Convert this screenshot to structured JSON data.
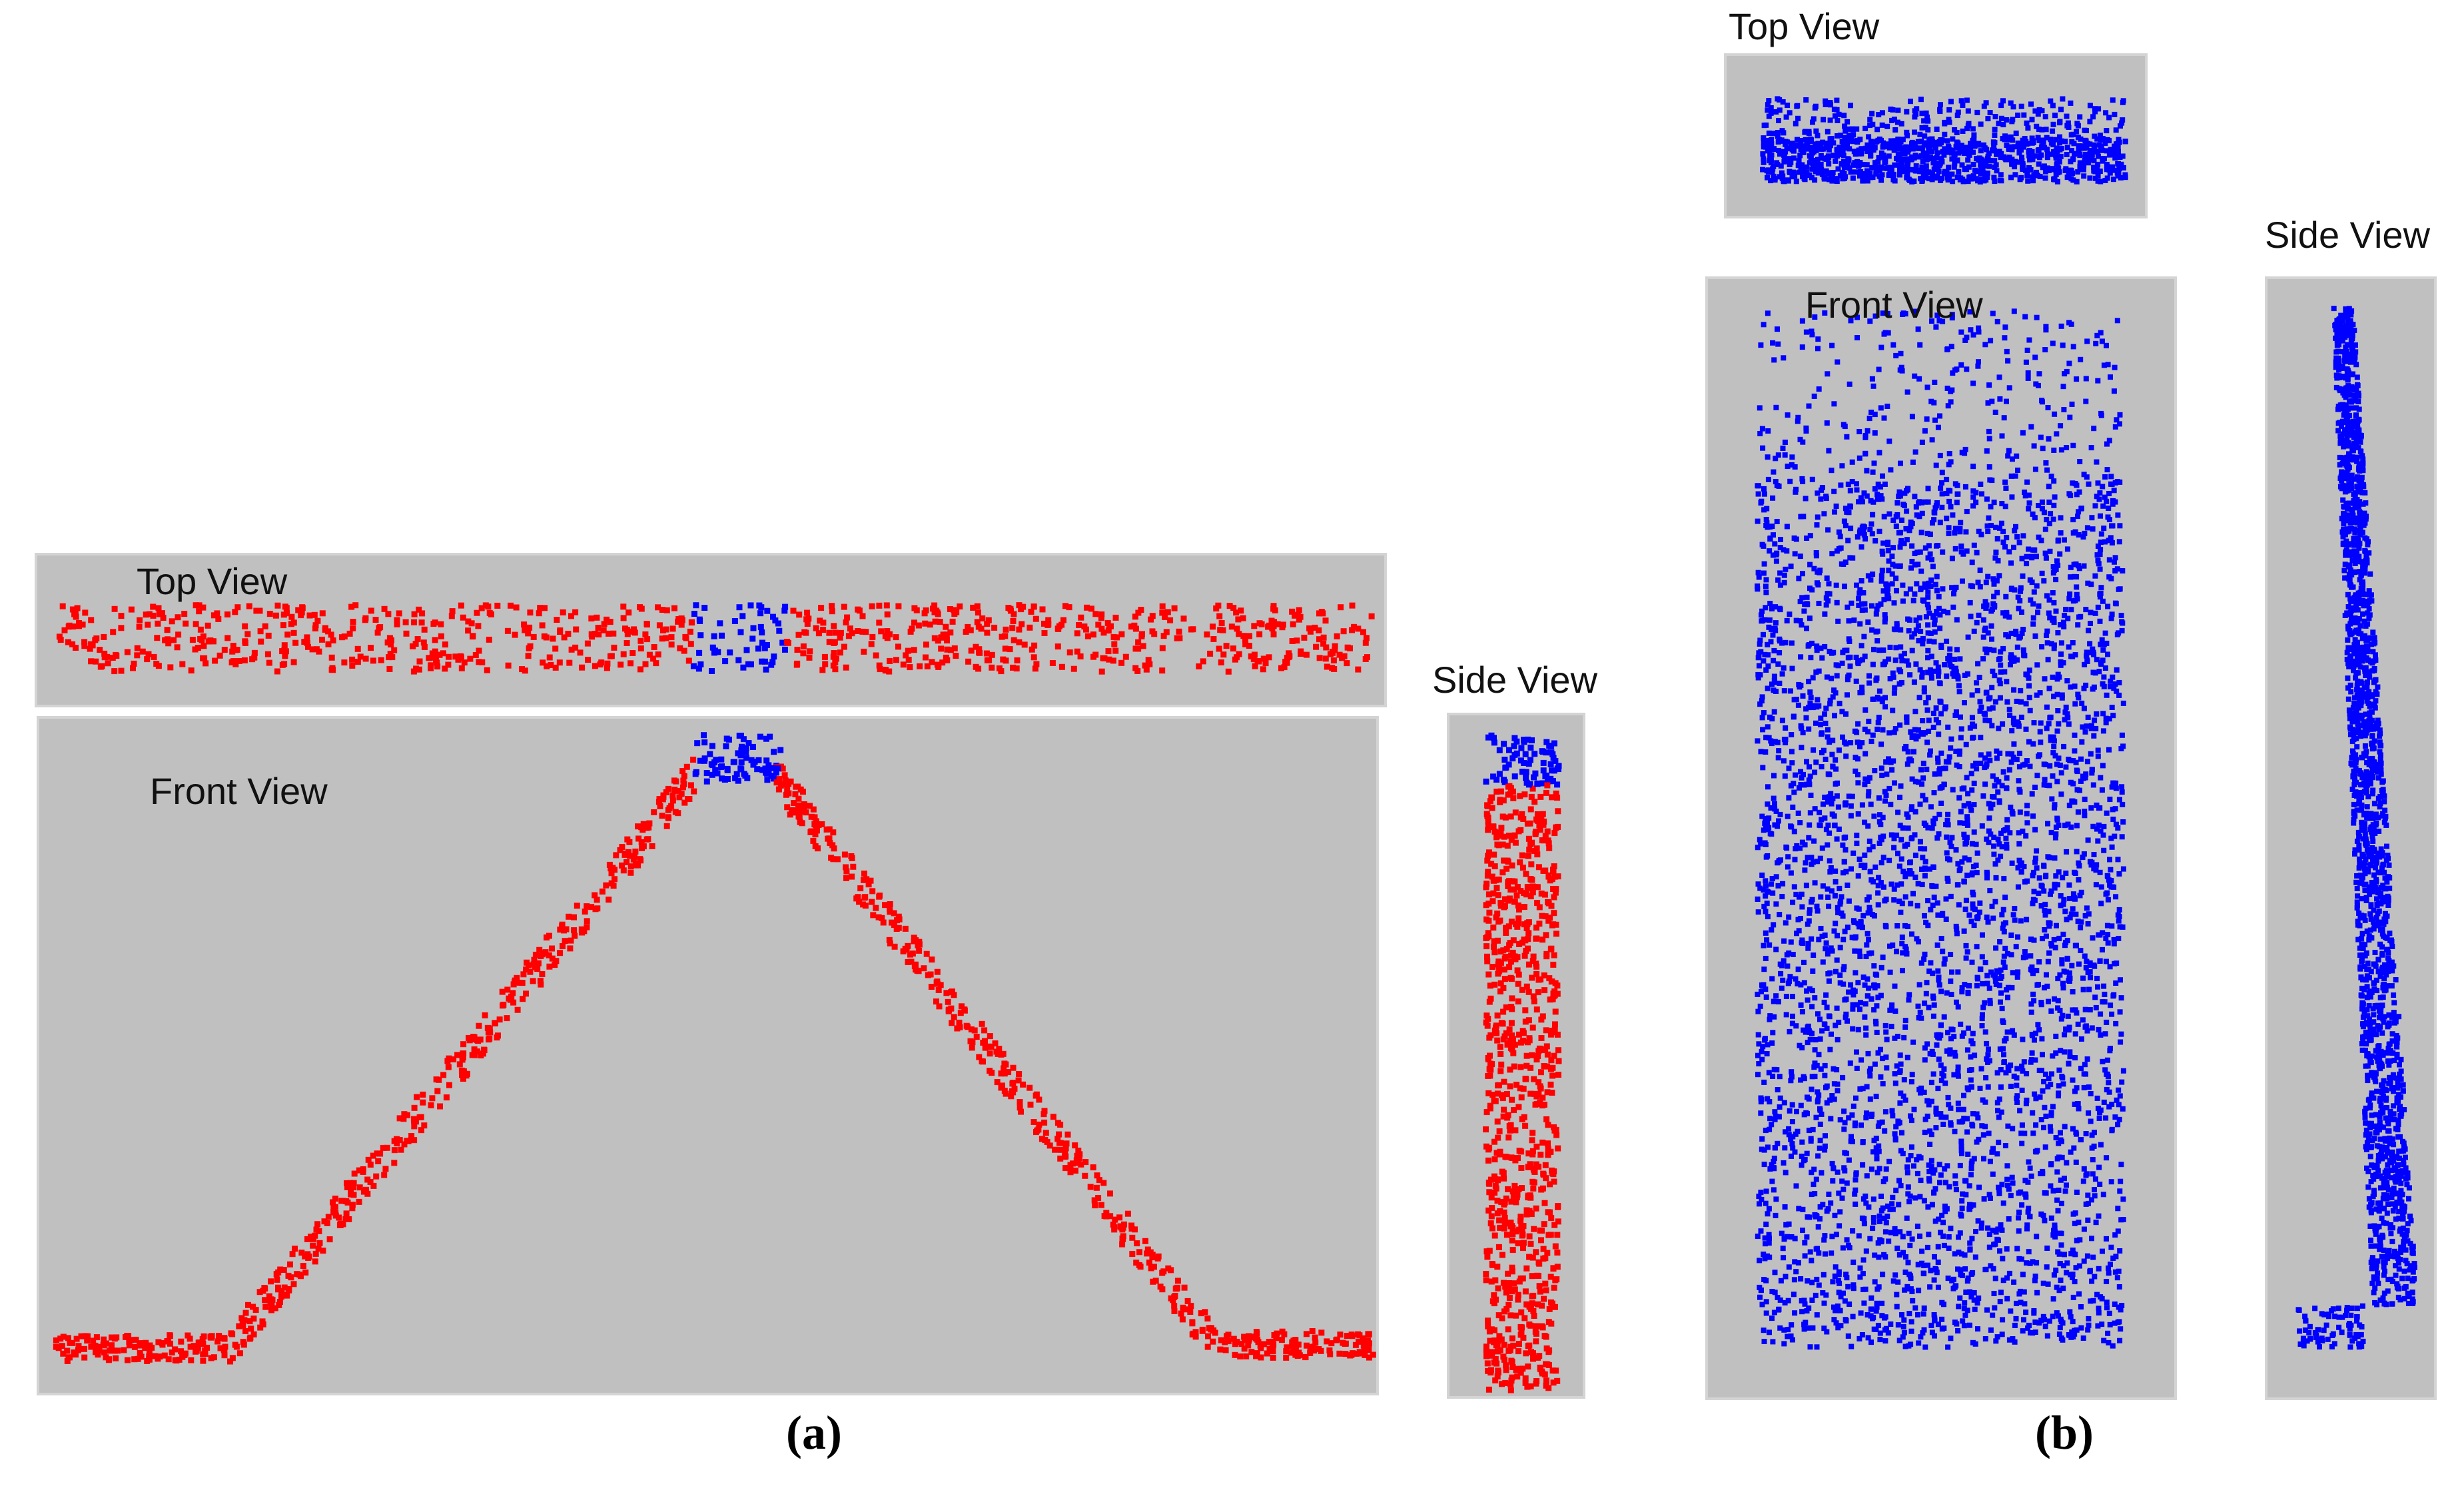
{
  "figure_a": {
    "caption": "(a)",
    "top_view_label": "Top View",
    "front_view_label": "Front View",
    "side_view_label": "Side View"
  },
  "figure_b": {
    "caption": "(b)",
    "top_view_label": "Top View",
    "front_view_label": "Front View",
    "side_view_label": "Side View"
  },
  "colors": {
    "panel_bg": "#c0c0c0",
    "point_primary": "#ff0000",
    "point_secondary": "#0000ff"
  }
}
